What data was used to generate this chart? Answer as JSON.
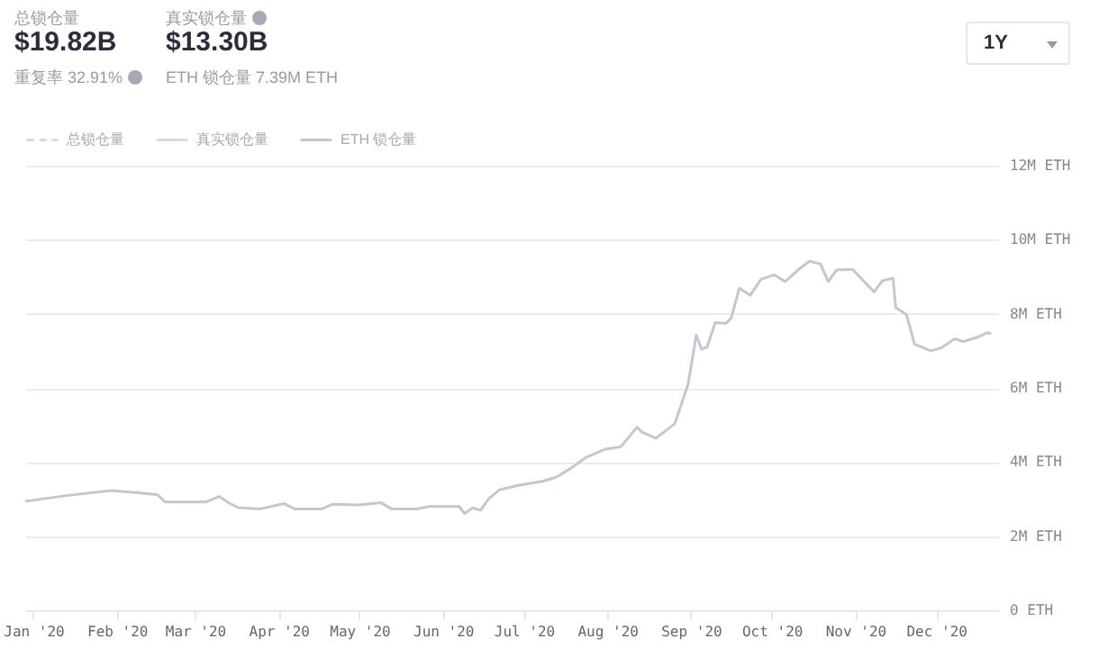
{
  "chart_data": {
    "type": "line",
    "annotations": [
      "总锁仓量",
      "$19.82B",
      "重复率 32.91%",
      "真实锁仓量",
      "$13.30B",
      "ETH 锁仓量 7.39M ETH",
      "1Y"
    ],
    "x": [
      "2019-12-29",
      "2020-01-14",
      "2020-01-30",
      "2020-02-16",
      "2020-02-19",
      "2020-03-05",
      "2020-03-10",
      "2020-03-13",
      "2020-03-17",
      "2020-03-25",
      "2020-04-03",
      "2020-04-07",
      "2020-04-17",
      "2020-04-21",
      "2020-05-01",
      "2020-05-09",
      "2020-05-13",
      "2020-05-22",
      "2020-05-27",
      "2020-06-07",
      "2020-06-09",
      "2020-06-12",
      "2020-06-15",
      "2020-06-18",
      "2020-06-22",
      "2020-06-29",
      "2020-07-08",
      "2020-07-13",
      "2020-07-18",
      "2020-07-24",
      "2020-07-31",
      "2020-08-06",
      "2020-08-12",
      "2020-08-14",
      "2020-08-19",
      "2020-08-26",
      "2020-08-27",
      "2020-08-31",
      "2020-09-03",
      "2020-09-05",
      "2020-09-07",
      "2020-09-10",
      "2020-09-14",
      "2020-09-16",
      "2020-09-19",
      "2020-09-23",
      "2020-09-27",
      "2020-10-02",
      "2020-10-06",
      "2020-10-11",
      "2020-10-15",
      "2020-10-19",
      "2020-10-22",
      "2020-10-25",
      "2020-10-31",
      "2020-11-08",
      "2020-11-11",
      "2020-11-15",
      "2020-11-16",
      "2020-11-20",
      "2020-11-23",
      "2020-11-29",
      "2020-12-03",
      "2020-12-08",
      "2020-12-11",
      "2020-12-16",
      "2020-12-20",
      "2020-12-21"
    ],
    "series": [
      {
        "name": "总锁仓量",
        "color": "#d9d9de",
        "line_style": "dashed",
        "values": [
          null,
          null,
          null,
          null,
          null,
          null,
          null,
          null,
          null,
          null,
          null,
          null,
          null,
          null,
          null,
          null,
          null,
          null,
          null,
          null,
          null,
          null,
          null,
          null,
          null,
          null,
          null,
          null,
          null,
          null,
          null,
          null,
          null,
          null,
          null,
          null,
          null,
          null,
          null,
          null,
          null,
          null,
          null,
          null,
          null,
          null,
          null,
          null,
          null,
          null,
          null,
          null,
          null,
          null,
          null,
          null,
          null,
          null,
          null,
          null,
          null,
          null,
          null,
          null,
          null,
          null,
          null,
          null
        ]
      },
      {
        "name": "真实锁仓量",
        "color": "#d9d9de",
        "line_style": "solid",
        "values": [
          null,
          null,
          null,
          null,
          null,
          null,
          null,
          null,
          null,
          null,
          null,
          null,
          null,
          null,
          null,
          null,
          null,
          null,
          null,
          null,
          null,
          null,
          null,
          null,
          null,
          null,
          null,
          null,
          null,
          null,
          null,
          null,
          null,
          null,
          null,
          null,
          null,
          null,
          null,
          null,
          null,
          null,
          null,
          null,
          null,
          null,
          null,
          null,
          null,
          null,
          null,
          null,
          null,
          null,
          null,
          null,
          null,
          null,
          null,
          null,
          null,
          null,
          null,
          null,
          null,
          null,
          null,
          null
        ]
      },
      {
        "name": "ETH 锁仓量",
        "color": "#c6c6d2",
        "line_style": "solid",
        "values": [
          2.94,
          3.1,
          3.23,
          3.12,
          2.92,
          2.92,
          3.07,
          2.92,
          2.77,
          2.73,
          2.88,
          2.73,
          2.73,
          2.86,
          2.84,
          2.9,
          2.73,
          2.73,
          2.8,
          2.8,
          2.61,
          2.76,
          2.7,
          3.01,
          3.25,
          3.37,
          3.48,
          3.59,
          3.81,
          4.12,
          4.34,
          4.41,
          4.94,
          4.8,
          4.64,
          5.03,
          5.24,
          6.11,
          7.42,
          7.04,
          7.1,
          7.76,
          7.74,
          7.89,
          8.69,
          8.5,
          8.93,
          9.05,
          8.87,
          9.2,
          9.42,
          9.35,
          8.87,
          9.18,
          9.2,
          8.59,
          8.89,
          8.96,
          8.17,
          7.98,
          7.18,
          7.0,
          7.08,
          7.33,
          7.25,
          7.36,
          7.49,
          7.47
        ]
      }
    ],
    "xlim": [
      "2019-12-29",
      "2020-12-24"
    ],
    "xticks": [
      {
        "value": "2020-01-01",
        "label": "Jan '20"
      },
      {
        "value": "2020-02-01",
        "label": "Feb '20"
      },
      {
        "value": "2020-03-01",
        "label": "Mar '20"
      },
      {
        "value": "2020-04-01",
        "label": "Apr '20"
      },
      {
        "value": "2020-05-01",
        "label": "May '20"
      },
      {
        "value": "2020-06-01",
        "label": "Jun '20"
      },
      {
        "value": "2020-07-01",
        "label": "Jul '20"
      },
      {
        "value": "2020-08-01",
        "label": "Aug '20"
      },
      {
        "value": "2020-09-01",
        "label": "Sep '20"
      },
      {
        "value": "2020-10-01",
        "label": "Oct '20"
      },
      {
        "value": "2020-11-01",
        "label": "Nov '20"
      },
      {
        "value": "2020-12-01",
        "label": "Dec '20"
      }
    ],
    "ylim": [
      0,
      12
    ],
    "yticks": [
      {
        "value": 0,
        "label": "0 ETH"
      },
      {
        "value": 2,
        "label": "2M ETH"
      },
      {
        "value": 4,
        "label": "4M ETH"
      },
      {
        "value": 6,
        "label": "6M ETH"
      },
      {
        "value": 8,
        "label": "8M ETH"
      },
      {
        "value": 10,
        "label": "10M ETH"
      },
      {
        "value": 12,
        "label": "12M ETH"
      }
    ],
    "grid": "y",
    "legend": "top left",
    "marker": "none"
  }
}
